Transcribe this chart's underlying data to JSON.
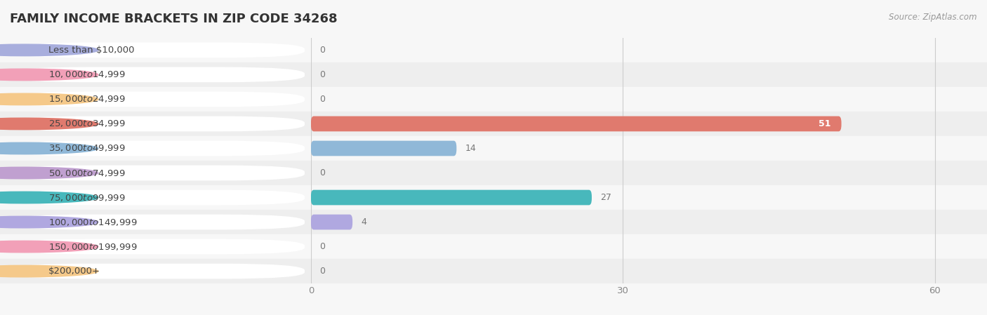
{
  "title": "FAMILY INCOME BRACKETS IN ZIP CODE 34268",
  "source": "Source: ZipAtlas.com",
  "categories": [
    "Less than $10,000",
    "$10,000 to $14,999",
    "$15,000 to $24,999",
    "$25,000 to $34,999",
    "$35,000 to $49,999",
    "$50,000 to $74,999",
    "$75,000 to $99,999",
    "$100,000 to $149,999",
    "$150,000 to $199,999",
    "$200,000+"
  ],
  "values": [
    0,
    0,
    0,
    51,
    14,
    0,
    27,
    4,
    0,
    0
  ],
  "bar_colors": [
    "#a8aedd",
    "#f2a0b8",
    "#f5c98a",
    "#e07a6e",
    "#90b8d8",
    "#c0a0d0",
    "#48b8bc",
    "#b0a8e0",
    "#f2a0b8",
    "#f5c98a"
  ],
  "background_color": "#f7f7f7",
  "row_bg_even": "#f7f7f7",
  "row_bg_odd": "#eeeeee",
  "xlim": [
    0,
    65
  ],
  "xticks": [
    0,
    30,
    60
  ],
  "title_fontsize": 13,
  "label_fontsize": 9.5,
  "value_fontsize": 9,
  "bar_height": 0.62,
  "grid_color": "#cccccc",
  "value_color_inside": "#ffffff",
  "value_color_outside": "#777777"
}
